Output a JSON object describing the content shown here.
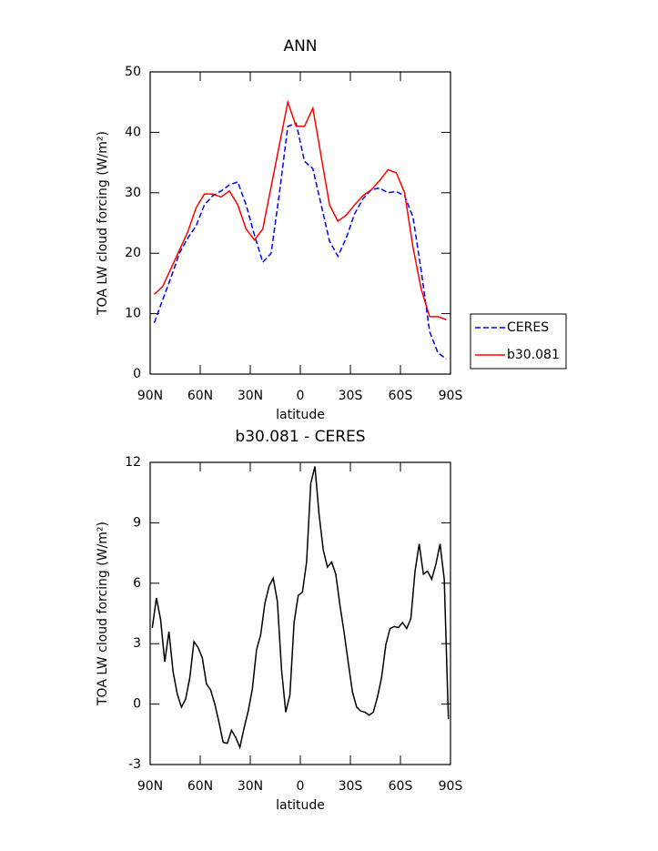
{
  "chart_data": [
    {
      "type": "line",
      "title": "ANN",
      "x_label": "latitude",
      "y_label": "TOA LW cloud forcing (W/m²)",
      "xlim": [
        90,
        -90
      ],
      "xticks": [
        {
          "value": 90,
          "label": "90N"
        },
        {
          "value": 60,
          "label": "60N"
        },
        {
          "value": 30,
          "label": "30N"
        },
        0,
        {
          "value": -30,
          "label": "30S"
        },
        {
          "value": -60,
          "label": "60S"
        },
        {
          "value": -90,
          "label": "90S"
        }
      ],
      "ylim": [
        0,
        50
      ],
      "yticks": [
        0,
        10,
        20,
        30,
        40,
        50
      ],
      "legend": "right",
      "x": [
        87.5,
        82.5,
        77.5,
        72.5,
        67.5,
        62.5,
        57.5,
        52.5,
        47.5,
        42.5,
        37.5,
        32.5,
        27.5,
        22.5,
        17.5,
        12.5,
        7.5,
        2.5,
        -2.5,
        -7.5,
        -12.5,
        -17.5,
        -22.5,
        -27.5,
        -32.5,
        -37.5,
        -42.5,
        -47.5,
        -52.5,
        -57.5,
        -62.5,
        -67.5,
        -72.5,
        -77.5,
        -82.5,
        -87.5
      ],
      "series": [
        {
          "name": "CERES",
          "color": "#0000ff",
          "dash": true,
          "values": [
            8.5,
            12.3,
            16,
            20,
            22.5,
            24.5,
            28,
            29.5,
            30.3,
            31.3,
            31.8,
            28,
            23,
            18.5,
            20,
            30,
            41,
            41.5,
            35.2,
            34,
            28,
            22,
            19.5,
            22.5,
            26.5,
            29,
            30.5,
            30.8,
            30,
            30.2,
            29.5,
            26,
            17,
            7,
            3.5,
            2.5
          ]
        },
        {
          "name": "b30.081",
          "color": "#ff0000",
          "dash": false,
          "values": [
            13.2,
            14.5,
            17.5,
            20.5,
            23.5,
            27.5,
            29.8,
            29.8,
            29.3,
            30.3,
            28,
            24,
            22.2,
            24,
            31,
            38,
            45,
            41,
            41,
            44,
            36,
            28,
            25.3,
            26.3,
            28,
            29.5,
            30.5,
            32,
            33.8,
            33.3,
            30,
            21,
            14,
            9.5,
            9.5,
            9
          ]
        }
      ]
    },
    {
      "type": "line",
      "title": "b30.081 - CERES",
      "x_label": "latitude",
      "y_label": "TOA LW cloud forcing (W/m²)",
      "xlim": [
        90,
        -90
      ],
      "xticks": [
        {
          "value": 90,
          "label": "90N"
        },
        {
          "value": 60,
          "label": "60N"
        },
        {
          "value": 30,
          "label": "30N"
        },
        0,
        {
          "value": -30,
          "label": "30S"
        },
        {
          "value": -60,
          "label": "60S"
        },
        {
          "value": -90,
          "label": "90S"
        }
      ],
      "ylim": [
        -3,
        12
      ],
      "yticks": [
        -3,
        0,
        3,
        6,
        9,
        12
      ],
      "x": [
        88.75,
        86.25,
        83.75,
        81.25,
        78.75,
        76.25,
        73.75,
        71.25,
        68.75,
        66.25,
        63.75,
        61.25,
        58.75,
        56.25,
        53.75,
        51.25,
        48.75,
        46.25,
        43.75,
        41.25,
        38.75,
        36.25,
        33.75,
        31.25,
        28.75,
        26.25,
        23.75,
        21.25,
        18.75,
        16.25,
        13.75,
        11.25,
        8.75,
        6.25,
        3.75,
        1.25,
        -1.25,
        -3.75,
        -6.25,
        -8.75,
        -11.25,
        -13.75,
        -16.25,
        -18.75,
        -21.25,
        -23.75,
        -26.25,
        -28.75,
        -31.25,
        -33.75,
        -36.25,
        -38.75,
        -41.25,
        -43.75,
        -46.25,
        -48.75,
        -51.25,
        -53.75,
        -56.25,
        -58.75,
        -61.25,
        -63.75,
        -66.25,
        -68.75,
        -71.25,
        -73.75,
        -76.25,
        -78.75,
        -81.25,
        -83.75,
        -86.25,
        -88.75
      ],
      "color": "#000000",
      "values": [
        3.78,
        5.27,
        4.2,
        2.1,
        3.6,
        1.6,
        0.5,
        -0.15,
        0.25,
        1.3,
        3.1,
        2.8,
        2.3,
        1.0,
        0.7,
        0.0,
        -0.9,
        -1.9,
        -1.95,
        -1.3,
        -1.65,
        -2.15,
        -1.2,
        -0.35,
        0.75,
        2.7,
        3.45,
        5.0,
        5.85,
        6.25,
        5.1,
        1.7,
        -0.4,
        0.45,
        4.05,
        5.4,
        5.55,
        7.05,
        10.95,
        11.8,
        9.4,
        7.65,
        6.8,
        7.05,
        6.45,
        4.9,
        3.55,
        2.05,
        0.6,
        -0.15,
        -0.35,
        -0.4,
        -0.55,
        -0.4,
        0.35,
        1.35,
        2.95,
        3.75,
        3.85,
        3.8,
        4.05,
        3.75,
        4.25,
        6.6,
        7.95,
        6.45,
        6.6,
        6.2,
        6.95,
        7.95,
        6.2,
        -0.75
      ]
    }
  ]
}
